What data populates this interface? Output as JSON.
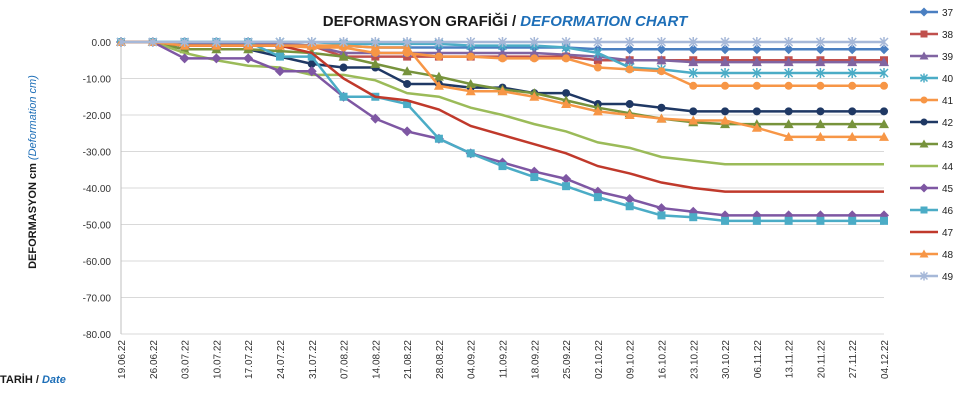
{
  "chart_data": {
    "type": "line",
    "title": "DEFORMASYON GRAFİĞİ",
    "title_separator": " / ",
    "subtitle": "DEFORMATION CHART",
    "ylabel": "DEFORMASYON cm",
    "ylabel_en": "(Deformation cm)",
    "xlabel": "TARİH /",
    "xlabel_en": "Date",
    "ylim": [
      -80,
      0
    ],
    "yticks": [
      "0.00",
      "-10.00",
      "-20.00",
      "-30.00",
      "-40.00",
      "-50.00",
      "-60.00",
      "-70.00",
      "-80.00"
    ],
    "ytick_values": [
      0,
      -10,
      -20,
      -30,
      -40,
      -50,
      -60,
      -70,
      -80
    ],
    "grid": true,
    "legend_position": "right",
    "categories": [
      "19.06.22",
      "26.06.22",
      "03.07.22",
      "10.07.22",
      "17.07.22",
      "24.07.22",
      "31.07.22",
      "07.08.22",
      "14.08.22",
      "21.08.22",
      "28.08.22",
      "04.09.22",
      "11.09.22",
      "18.09.22",
      "25.09.22",
      "02.10.22",
      "09.10.22",
      "16.10.22",
      "23.10.22",
      "30.10.22",
      "06.11.22",
      "13.11.22",
      "20.11.22",
      "27.11.22",
      "04.12.22"
    ],
    "series": [
      {
        "name": "37",
        "color": "#4a7fc1",
        "marker": "diamond",
        "values": [
          0,
          0,
          -0.5,
          -0.5,
          -0.5,
          -0.5,
          -1,
          -1,
          -1.5,
          -1.5,
          -1.5,
          -1.5,
          -1.5,
          -1.5,
          -1.5,
          -2,
          -2,
          -2,
          -2,
          -2,
          -2,
          -2,
          -2,
          -2,
          -2
        ]
      },
      {
        "name": "38",
        "color": "#c0504d",
        "marker": "square",
        "values": [
          0,
          0,
          -1,
          -1,
          -1,
          -1,
          -1,
          -4,
          -4,
          -4,
          -4,
          -4,
          -4,
          -4,
          -4,
          -5,
          -5,
          -5,
          -5,
          -5,
          -5,
          -5,
          -5,
          -5,
          -5
        ]
      },
      {
        "name": "39",
        "color": "#8064a2",
        "marker": "triangle",
        "values": [
          0,
          0,
          -0.5,
          -0.5,
          -0.5,
          -0.5,
          -1,
          -3,
          -3,
          -3,
          -3,
          -3,
          -3,
          -3,
          -3.5,
          -4,
          -5,
          -5,
          -5.5,
          -5.5,
          -5.5,
          -5.5,
          -5.5,
          -5.5,
          -5.5
        ]
      },
      {
        "name": "40",
        "color": "#4bacc6",
        "marker": "star",
        "values": [
          0,
          0,
          0,
          0,
          0,
          0,
          0,
          -0.5,
          -0.5,
          -0.5,
          -0.5,
          -1,
          -1,
          -1,
          -1.5,
          -3,
          -7,
          -7.5,
          -8.5,
          -8.5,
          -8.5,
          -8.5,
          -8.5,
          -8.5,
          -8.5
        ]
      },
      {
        "name": "41",
        "color": "#f79646",
        "marker": "circle",
        "values": [
          0,
          0,
          -1,
          -1,
          -1,
          -1,
          -1.5,
          -1.5,
          -3,
          -3,
          -4,
          -4,
          -4.5,
          -4.5,
          -4.5,
          -7,
          -7.5,
          -8,
          -12,
          -12,
          -12,
          -12,
          -12,
          -12,
          -12
        ]
      },
      {
        "name": "42",
        "color": "#1f3864",
        "marker": "circle",
        "values": [
          0,
          0,
          -2,
          -2,
          -2,
          -4,
          -6,
          -7,
          -7,
          -11.5,
          -11.5,
          -12.5,
          -12.5,
          -14,
          -14,
          -17,
          -17,
          -18,
          -19,
          -19,
          -19,
          -19,
          -19,
          -19,
          -19
        ]
      },
      {
        "name": "43",
        "color": "#77933c",
        "marker": "triangle",
        "values": [
          0,
          0,
          -2,
          -2,
          -2,
          -2.5,
          -3,
          -4,
          -6,
          -8,
          -9.5,
          -11.5,
          -13,
          -14,
          -16,
          -18,
          -19.5,
          -21,
          -22,
          -22.5,
          -22.5,
          -22.5,
          -22.5,
          -22.5,
          -22.5
        ]
      },
      {
        "name": "44",
        "color": "#9bbb59",
        "marker": "none",
        "values": [
          0,
          0,
          -3,
          -5,
          -6.5,
          -7,
          -9,
          -9,
          -10.5,
          -14,
          -15,
          -18,
          -20,
          -22.5,
          -24.5,
          -27.5,
          -29,
          -31.5,
          -32.5,
          -33.5,
          -33.5,
          -33.5,
          -33.5,
          -33.5,
          -33.5
        ]
      },
      {
        "name": "45",
        "color": "#7e57a3",
        "marker": "diamond",
        "values": [
          0,
          0,
          -4.5,
          -4.5,
          -4.5,
          -8,
          -8,
          -15,
          -21,
          -24.5,
          -26.5,
          -30.5,
          -33,
          -35.5,
          -37.5,
          -41,
          -43,
          -45.5,
          -46.5,
          -47.5,
          -47.5,
          -47.5,
          -47.5,
          -47.5,
          -47.5
        ]
      },
      {
        "name": "46",
        "color": "#4bacc6",
        "marker": "square",
        "values": [
          0,
          0,
          0,
          0,
          0,
          -4,
          -4,
          -15,
          -15,
          -17,
          -26.5,
          -30.5,
          -34,
          -37,
          -39.5,
          -42.5,
          -45,
          -47.5,
          -48,
          -49,
          -49,
          -49,
          -49,
          -49,
          -49
        ]
      },
      {
        "name": "47",
        "color": "#c0392b",
        "marker": "none",
        "values": [
          0,
          0,
          -1,
          -1,
          -1,
          -1,
          -3,
          -10,
          -15,
          -16,
          -18.5,
          -23,
          -25.5,
          -28,
          -30.5,
          -34,
          -36,
          -38.5,
          -40,
          -41,
          -41,
          -41,
          -41,
          -41,
          -41
        ]
      },
      {
        "name": "48",
        "color": "#f79646",
        "marker": "triangle",
        "values": [
          0,
          0,
          -1,
          -1,
          -1,
          -1,
          -1,
          -1,
          -1.5,
          -1.5,
          -12,
          -13.5,
          -13.5,
          -15,
          -17,
          -19,
          -20,
          -21,
          -21.5,
          -21.5,
          -23.5,
          -26,
          -26,
          -26,
          -26
        ]
      },
      {
        "name": "49",
        "color": "#a6b8d8",
        "marker": "star",
        "values": [
          0,
          0,
          0,
          0,
          0,
          0,
          0,
          0,
          0,
          0,
          0,
          0,
          0,
          0,
          0,
          0,
          0,
          0,
          0,
          0,
          0,
          0,
          0,
          0,
          0
        ]
      }
    ]
  }
}
